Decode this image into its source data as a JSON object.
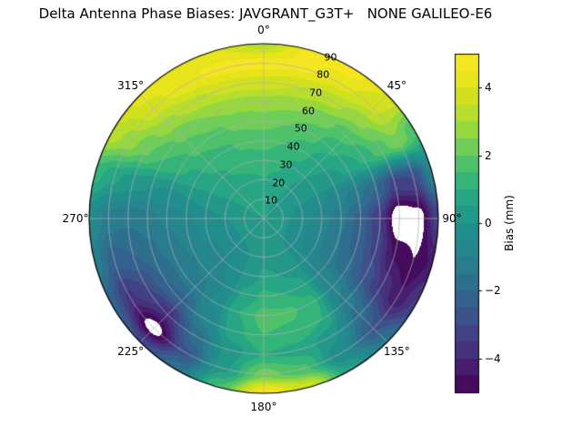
{
  "title": "Delta Antenna Phase Biases: JAVGRANT_G3T+   NONE GALILEO-E6",
  "chart_data": {
    "type": "heatmap",
    "projection": "polar",
    "title": "Delta Antenna Phase Biases: JAVGRANT_G3T+   NONE GALILEO-E6",
    "grid": true,
    "grid_color": "#b0b0b0",
    "background": "#ffffff",
    "azimuth_labels": [
      {
        "angle": 0,
        "label": "0°"
      },
      {
        "angle": 45,
        "label": "45°"
      },
      {
        "angle": 90,
        "label": "90°"
      },
      {
        "angle": 135,
        "label": "135°"
      },
      {
        "angle": 180,
        "label": "180°"
      },
      {
        "angle": 225,
        "label": "225°"
      },
      {
        "angle": 270,
        "label": "270°"
      },
      {
        "angle": 315,
        "label": "315°"
      }
    ],
    "radial_ticks": {
      "values": [
        10,
        20,
        30,
        40,
        50,
        60,
        70,
        80,
        90
      ],
      "max": 90,
      "label_angle_deg": 22.5
    },
    "colorbar": {
      "label": "Bias (mm)",
      "vmin": -5,
      "vmax": 5,
      "ticks": [
        {
          "value": 4,
          "label": "4"
        },
        {
          "value": 2,
          "label": "2"
        },
        {
          "value": 0,
          "label": "0"
        },
        {
          "value": -2,
          "label": "−2"
        },
        {
          "value": -4,
          "label": "−4"
        }
      ]
    },
    "levels_step": 0.5,
    "masked_color": "#ffffff",
    "colormap": {
      "name": "viridis",
      "stops": [
        [
          0.0,
          "#440154"
        ],
        [
          0.1,
          "#482878"
        ],
        [
          0.2,
          "#3e4a89"
        ],
        [
          0.3,
          "#31688e"
        ],
        [
          0.4,
          "#26828e"
        ],
        [
          0.5,
          "#21918c"
        ],
        [
          0.6,
          "#27ad81"
        ],
        [
          0.7,
          "#5cc863"
        ],
        [
          0.8,
          "#aadc32"
        ],
        [
          0.9,
          "#dfe318"
        ],
        [
          1.0,
          "#fde725"
        ]
      ]
    },
    "azimuth_deg": [
      0,
      15,
      30,
      45,
      60,
      75,
      90,
      105,
      120,
      135,
      150,
      165,
      180,
      195,
      210,
      225,
      240,
      255,
      270,
      285,
      300,
      315,
      330,
      345
    ],
    "zenith_deg": [
      0,
      10,
      20,
      30,
      40,
      50,
      60,
      70,
      80,
      90
    ],
    "values": [
      [
        0.5,
        0.7,
        1.0,
        1.3,
        1.7,
        2.2,
        2.8,
        3.8,
        4.7,
        3.2
      ],
      [
        0.5,
        0.6,
        0.9,
        1.1,
        1.5,
        2.0,
        2.6,
        3.5,
        4.6,
        4.6
      ],
      [
        0.5,
        0.5,
        0.7,
        0.9,
        1.2,
        1.7,
        2.3,
        3.2,
        4.2,
        4.8
      ],
      [
        0.5,
        0.4,
        0.4,
        0.5,
        0.7,
        1.1,
        1.7,
        2.6,
        3.6,
        4.0
      ],
      [
        0.5,
        0.3,
        0.2,
        0.2,
        0.3,
        0.6,
        1.1,
        1.8,
        2.4,
        1.6
      ],
      [
        0.5,
        0.2,
        -0.1,
        -0.4,
        -0.8,
        -1.3,
        -2.0,
        -3.2,
        -3.0,
        -1.0
      ],
      [
        0.5,
        0.1,
        -0.3,
        -0.8,
        -1.4,
        -2.2,
        -3.5,
        -5.8,
        -5.4,
        -3.2
      ],
      [
        0.5,
        0.1,
        -0.4,
        -0.9,
        -1.5,
        -2.2,
        -3.2,
        -4.6,
        -5.0,
        -4.4
      ],
      [
        0.5,
        0.1,
        -0.4,
        -0.9,
        -1.4,
        -1.9,
        -2.6,
        -3.6,
        -4.4,
        -3.4
      ],
      [
        0.5,
        0.2,
        -0.2,
        -0.4,
        -0.6,
        -0.8,
        -1.2,
        -1.8,
        -2.6,
        -1.4
      ],
      [
        0.5,
        0.3,
        0.2,
        0.3,
        0.7,
        1.2,
        1.0,
        0.2,
        -0.4,
        0.6
      ],
      [
        0.5,
        0.4,
        0.3,
        0.5,
        1.0,
        1.6,
        1.4,
        0.8,
        1.6,
        3.8
      ],
      [
        0.5,
        0.4,
        0.3,
        0.6,
        1.1,
        1.7,
        1.5,
        1.0,
        2.2,
        4.8
      ],
      [
        0.5,
        0.3,
        0.1,
        0.2,
        0.6,
        1.0,
        0.8,
        0.2,
        0.4,
        1.6
      ],
      [
        0.5,
        0.2,
        -0.1,
        -0.4,
        -0.5,
        -0.4,
        -0.8,
        -1.8,
        -2.6,
        -1.6
      ],
      [
        0.5,
        0.2,
        -0.2,
        -0.6,
        -0.9,
        -1.3,
        -2.2,
        -3.8,
        -5.4,
        -3.0
      ],
      [
        0.5,
        0.2,
        -0.2,
        -0.6,
        -1.0,
        -1.4,
        -2.0,
        -3.0,
        -3.6,
        -2.2
      ],
      [
        0.5,
        0.2,
        -0.1,
        -0.4,
        -0.8,
        -1.2,
        -1.6,
        -2.0,
        -2.2,
        -1.2
      ],
      [
        0.5,
        0.3,
        0.0,
        -0.3,
        -0.6,
        -0.9,
        -1.2,
        -1.4,
        -1.2,
        -0.4
      ],
      [
        0.5,
        0.4,
        0.2,
        0.1,
        0.0,
        -0.1,
        0.0,
        0.2,
        0.6,
        1.2
      ],
      [
        0.5,
        0.5,
        0.5,
        0.6,
        0.8,
        1.1,
        1.5,
        2.1,
        2.8,
        3.4
      ],
      [
        0.5,
        0.6,
        0.7,
        0.9,
        1.2,
        1.6,
        2.1,
        2.9,
        3.8,
        4.2
      ],
      [
        0.5,
        0.6,
        0.8,
        1.1,
        1.4,
        1.9,
        2.5,
        3.4,
        4.4,
        4.5
      ],
      [
        0.5,
        0.7,
        0.9,
        1.2,
        1.6,
        2.1,
        2.7,
        3.7,
        4.7,
        4.0
      ]
    ]
  }
}
